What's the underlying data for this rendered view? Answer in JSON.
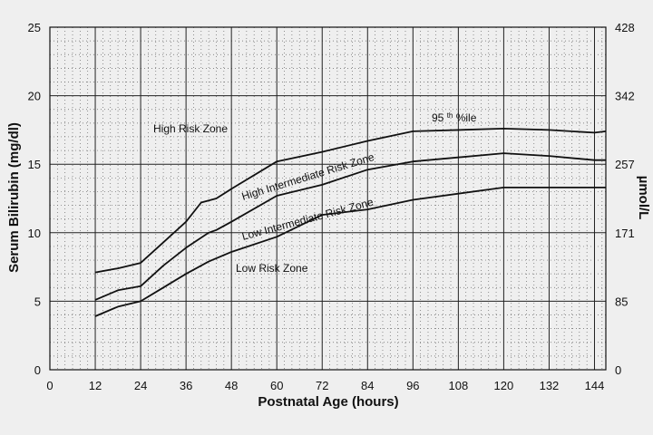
{
  "chart_data": {
    "type": "line",
    "xlabel": "Postnatal Age (hours)",
    "ylabel": "Serum Bilirubin (mg/dl)",
    "ylabel_right": "µmol/L",
    "xlim": [
      0,
      147
    ],
    "ylim": [
      0,
      25
    ],
    "grid": true,
    "x_ticks": [
      "0",
      "12",
      "24",
      "36",
      "48",
      "60",
      "72",
      "84",
      "96",
      "108",
      "120",
      "132",
      "144"
    ],
    "y_ticks": [
      "0",
      "5",
      "10",
      "15",
      "20",
      "25"
    ],
    "y_right_ticks": [
      {
        "value": 0,
        "label": "0"
      },
      {
        "value": 5,
        "label": "85"
      },
      {
        "value": 10,
        "label": "171"
      },
      {
        "value": 15,
        "label": "257"
      },
      {
        "value": 20,
        "label": "342"
      },
      {
        "value": 25,
        "label": "428"
      }
    ],
    "series": [
      {
        "name": "95th %ile",
        "x": [
          12,
          18,
          24,
          30,
          36,
          40,
          44,
          48,
          60,
          72,
          84,
          96,
          120,
          132,
          144,
          147
        ],
        "y": [
          7.1,
          7.4,
          7.8,
          9.3,
          10.8,
          12.2,
          12.5,
          13.2,
          15.2,
          15.9,
          16.7,
          17.4,
          17.6,
          17.5,
          17.3,
          17.4
        ]
      },
      {
        "name": "",
        "x": [
          12,
          18,
          24,
          30,
          36,
          42,
          44,
          48,
          60,
          72,
          84,
          96,
          120,
          132,
          144,
          147
        ],
        "y": [
          5.1,
          5.8,
          6.1,
          7.6,
          8.9,
          10.0,
          10.2,
          10.8,
          12.7,
          13.5,
          14.6,
          15.2,
          15.8,
          15.6,
          15.3,
          15.3
        ]
      },
      {
        "name": "",
        "x": [
          12,
          18,
          24,
          30,
          36,
          42,
          48,
          60,
          72,
          84,
          96,
          120,
          132,
          144,
          147
        ],
        "y": [
          3.9,
          4.6,
          5.0,
          6.0,
          7.0,
          7.9,
          8.6,
          9.7,
          11.3,
          11.7,
          12.4,
          13.3,
          13.3,
          13.3,
          13.3
        ]
      }
    ],
    "annotations": {
      "high_risk": "High Risk Zone",
      "high_intermediate": "High Intermediate Risk Zone",
      "low_intermediate": "Low Intermediate Risk Zone",
      "low_risk": "Low Risk Zone",
      "pct_95": "95",
      "pct_th": "th",
      "pct_ile": "%ile"
    }
  }
}
